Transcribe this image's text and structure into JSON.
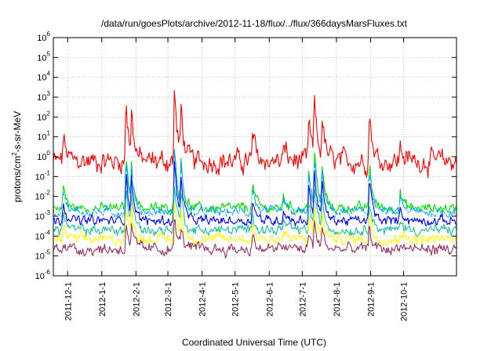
{
  "chart_data": {
    "type": "line",
    "title": "/data/run/goesPlots/archive/2012-11-18/flux/../flux/366daysMarsFluxes.txt",
    "xlabel": "Coordinated Universal Time (UTC)",
    "ylabel_parts": [
      "protons/cm",
      "2",
      "-s-sr-MeV"
    ],
    "xrange": [
      "2011-11-18",
      "2012-11-18"
    ],
    "ylim": [
      1e-06,
      1000000.0
    ],
    "yscale": "log",
    "grid": true,
    "legend": "none",
    "y_tick_exponents": [
      -6,
      -5,
      -4,
      -3,
      -2,
      -1,
      0,
      1,
      2,
      3,
      4,
      5,
      6
    ],
    "y_tick_base": "10",
    "x_ticks": [
      {
        "date": "2011-12-01",
        "label": "2011-12-1"
      },
      {
        "date": "2012-01-01",
        "label": "2012-1-1"
      },
      {
        "date": "2012-02-01",
        "label": "2012-2-1"
      },
      {
        "date": "2012-03-01",
        "label": "2012-3-1"
      },
      {
        "date": "2012-04-01",
        "label": "2012-4-1"
      },
      {
        "date": "2012-05-01",
        "label": "2012-5-1"
      },
      {
        "date": "2012-06-01",
        "label": "2012-6-1"
      },
      {
        "date": "2012-07-01",
        "label": "2012-7-1"
      },
      {
        "date": "2012-08-01",
        "label": "2012-8-1"
      },
      {
        "date": "2012-09-01",
        "label": "2012-9-1"
      },
      {
        "date": "2012-10-01",
        "label": "2012-10-1"
      }
    ],
    "events": [
      {
        "date": "2011-11-27",
        "amp": 1.0
      },
      {
        "date": "2012-01-23",
        "amp": 2.4
      },
      {
        "date": "2012-01-28",
        "amp": 1.6
      },
      {
        "date": "2012-03-07",
        "amp": 2.8
      },
      {
        "date": "2012-03-13",
        "amp": 1.8
      },
      {
        "date": "2012-05-17",
        "amp": 1.1
      },
      {
        "date": "2012-06-14",
        "amp": 0.6
      },
      {
        "date": "2012-07-07",
        "amp": 1.6
      },
      {
        "date": "2012-07-12",
        "amp": 2.2
      },
      {
        "date": "2012-07-19",
        "amp": 1.6
      },
      {
        "date": "2012-08-31",
        "amp": 2.0
      },
      {
        "date": "2012-09-28",
        "amp": 0.7
      }
    ],
    "series": [
      {
        "color": "#ff0000",
        "base": 0.6,
        "noise": 0.45,
        "amp": 1.3
      },
      {
        "color": "#00e000",
        "base": 0.0025,
        "noise": 0.22,
        "amp": 1.2
      },
      {
        "color": "#00a8ff",
        "base": 0.0016,
        "noise": 0.2,
        "amp": 1.15
      },
      {
        "color": "#ffffff",
        "base": 0.0012,
        "noise": 0.18,
        "amp": 1.05
      },
      {
        "color": "#0000ff",
        "base": 0.0006,
        "noise": 0.2,
        "amp": 1.1
      },
      {
        "color": "#20c0a0",
        "base": 0.0002,
        "noise": 0.22,
        "amp": 0.9
      },
      {
        "color": "#ffff00",
        "base": 7e-05,
        "noise": 0.22,
        "amp": 0.7
      },
      {
        "color": "#993366",
        "base": 2.2e-05,
        "noise": 0.25,
        "amp": 0.55
      }
    ]
  }
}
